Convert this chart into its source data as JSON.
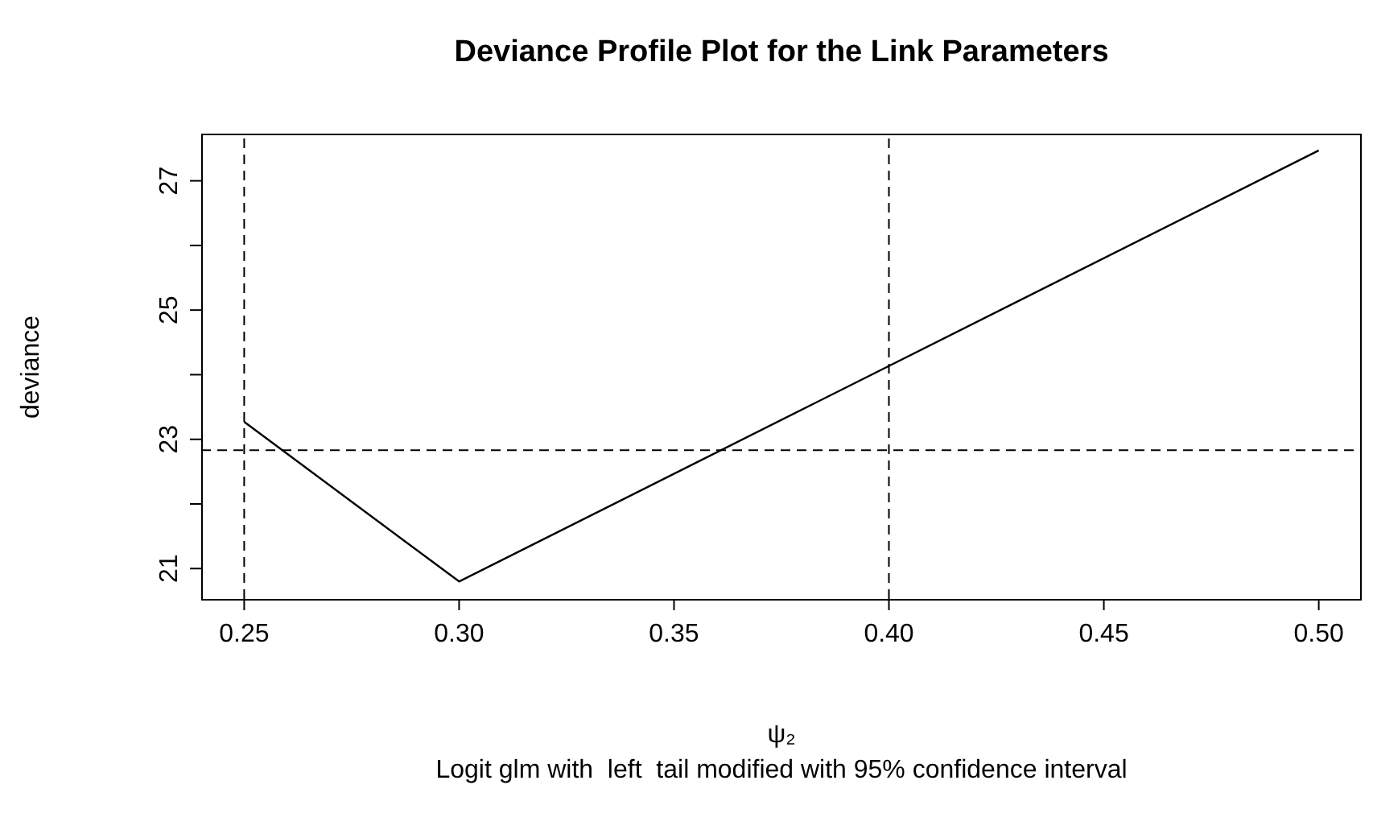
{
  "chart_data": {
    "type": "line",
    "title": "Deviance Profile Plot for the Link Parameters",
    "xlabel": "ψ₂",
    "ylabel": "deviance",
    "annotations": [
      "Logit glm with  left  tail modified with 95% confidence interval"
    ],
    "x": [
      0.25,
      0.3,
      0.5
    ],
    "series": [
      {
        "color": "#000000",
        "values": [
          23.27,
          20.8,
          27.47
        ]
      }
    ],
    "xlim": [
      0.24,
      0.51
    ],
    "xticks": [
      0.25,
      {
        "value": 0.3,
        "label": "0.30"
      },
      0.35,
      {
        "value": 0.4,
        "label": "0.40"
      },
      0.45,
      {
        "value": 0.5,
        "label": "0.50"
      }
    ],
    "ylim": [
      20.53,
      27.73
    ],
    "yticks": [
      21,
      {
        "value": 22,
        "label": null
      },
      23,
      {
        "value": 24,
        "label": null
      },
      25,
      {
        "value": 26,
        "label": null
      },
      27
    ],
    "ref_lines": [
      {
        "axis": "x",
        "value": 0.25,
        "color": "#000000",
        "line_style": "dashed"
      },
      {
        "axis": "x",
        "value": 0.4,
        "color": "#000000",
        "line_style": "dashed"
      },
      {
        "axis": "y",
        "value": 22.83,
        "color": "#000000",
        "line_style": "dashed"
      }
    ],
    "grid": false,
    "marker": "none",
    "line_style": "solid"
  }
}
